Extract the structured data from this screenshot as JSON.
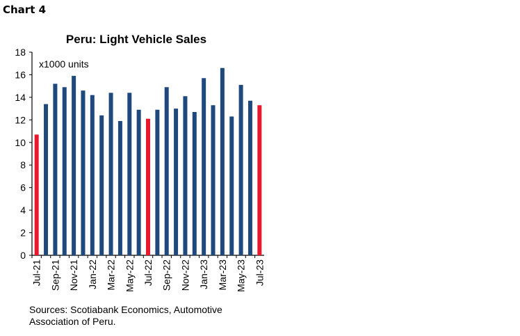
{
  "chart_label": "Chart 4",
  "source": "Sources: Scotiabank Economics, Automotive Association of Peru.",
  "colors": {
    "bar": "#1f497d",
    "highlight": "#e8192c"
  },
  "chart_data": {
    "type": "bar",
    "title": "Peru: Light Vehicle Sales",
    "unit_label": "x1000 units",
    "xlabel": "",
    "ylabel": "",
    "ylim": [
      0,
      18
    ],
    "yticks": [
      0,
      2,
      4,
      6,
      8,
      10,
      12,
      14,
      16,
      18
    ],
    "grid": false,
    "categories": [
      "Jul-21",
      "Aug-21",
      "Sep-21",
      "Oct-21",
      "Nov-21",
      "Dec-21",
      "Jan-22",
      "Feb-22",
      "Mar-22",
      "Apr-22",
      "May-22",
      "Jun-22",
      "Jul-22",
      "Aug-22",
      "Sep-22",
      "Oct-22",
      "Nov-22",
      "Dec-22",
      "Jan-23",
      "Feb-23",
      "Mar-23",
      "Apr-23",
      "May-23",
      "Jun-23",
      "Jul-23"
    ],
    "tick_labels": [
      "Jul-21",
      "Sep-21",
      "Nov-21",
      "Jan-22",
      "Mar-22",
      "May-22",
      "Jul-22",
      "Sep-22",
      "Nov-22",
      "Jan-23",
      "Mar-23",
      "May-23",
      "Jul-23"
    ],
    "values": [
      10.7,
      13.4,
      15.2,
      14.9,
      15.9,
      14.6,
      14.2,
      12.4,
      14.4,
      11.9,
      14.4,
      12.9,
      12.1,
      12.9,
      14.9,
      13.0,
      14.1,
      12.7,
      15.7,
      13.3,
      16.6,
      12.3,
      15.1,
      13.7,
      13.3
    ],
    "highlighted": [
      "Jul-21",
      "Jul-22",
      "Jul-23"
    ]
  }
}
